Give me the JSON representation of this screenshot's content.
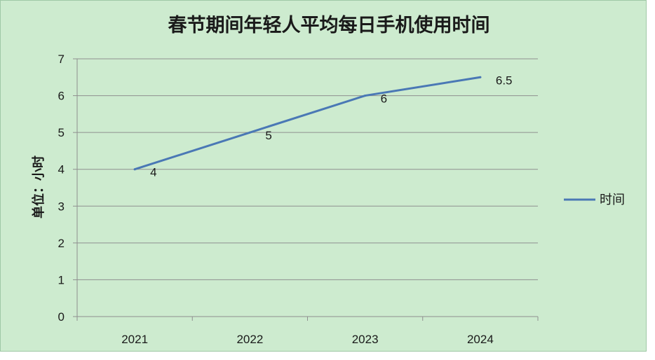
{
  "chart_data": {
    "type": "line",
    "title": "春节期间年轻人平均每日手机使用时间",
    "xlabel": "",
    "ylabel": "单位：小时",
    "categories": [
      "2021",
      "2022",
      "2023",
      "2024"
    ],
    "series": [
      {
        "name": "时间",
        "values": [
          4,
          5,
          6,
          6.5
        ],
        "data_labels": [
          "4",
          "5",
          "6",
          "6.5"
        ],
        "color": "#4a78b5"
      }
    ],
    "ylim": [
      0,
      7
    ],
    "yticks": [
      "0",
      "1",
      "2",
      "3",
      "4",
      "5",
      "6",
      "7"
    ],
    "grid": true,
    "legend_position": "right",
    "background_color": "#cdebcf",
    "gridline_color": "#8f8f8f"
  }
}
